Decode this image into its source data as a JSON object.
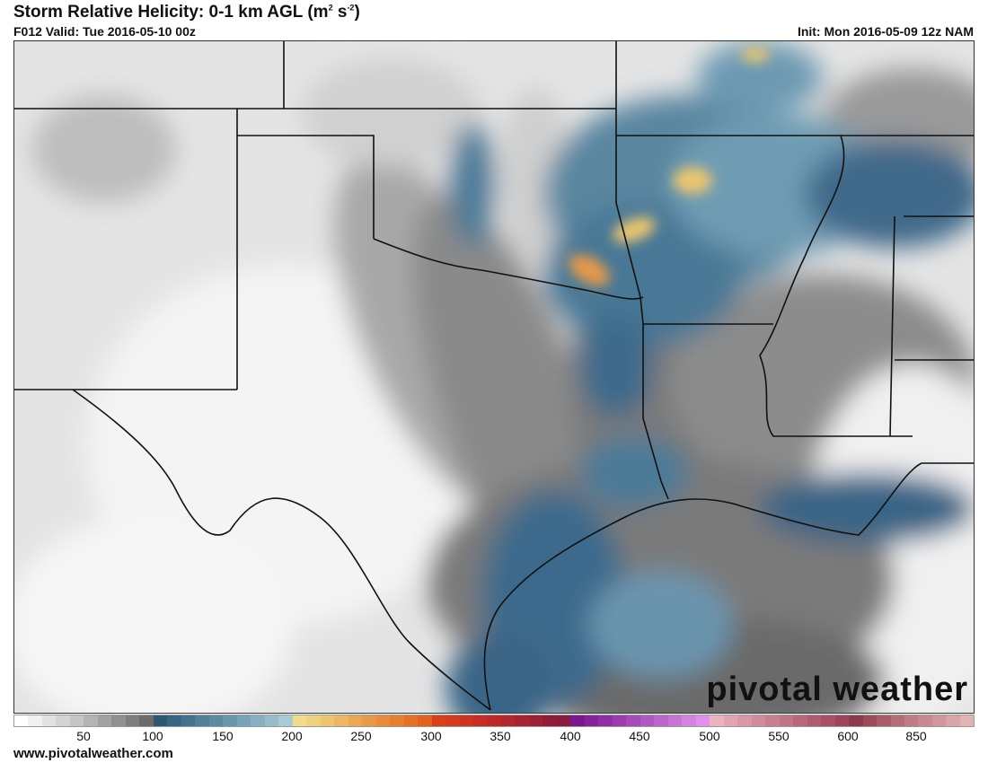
{
  "header": {
    "title": "Storm Relative Helicity: 0-1 km AGL (m",
    "title_sup1": "2",
    "title_mid": " s",
    "title_sup2": "-2",
    "title_end": ")",
    "valid": "F012 Valid: Tue 2016-05-10 00z",
    "init": "Init: Mon 2016-05-09 12z NAM"
  },
  "map": {
    "region": "Southern Plains / Texas / Lower Mississippi Valley",
    "logo": "pivotal weather"
  },
  "colorbar": {
    "tick_labels": [
      "50",
      "100",
      "150",
      "200",
      "250",
      "300",
      "350",
      "400",
      "450",
      "500",
      "550",
      "600",
      "850"
    ],
    "colors": {
      "gray": [
        "#ffffff",
        "#f0f0f0",
        "#e2e2e2",
        "#d4d4d4",
        "#c6c6c6",
        "#b4b4b4",
        "#a2a2a2",
        "#909090",
        "#7e7e7e",
        "#6c6c6c"
      ],
      "blue": [
        "#2e5774",
        "#3a6482",
        "#46708d",
        "#537d98",
        "#5f89a2",
        "#6c96ad",
        "#79a3b8",
        "#88b0c2",
        "#97bdcc",
        "#a8cbd6"
      ],
      "orange": [
        "#f0dc8c",
        "#f0d27e",
        "#eec470",
        "#ecb662",
        "#eaa854",
        "#e89a48",
        "#e88c3c",
        "#e87e30",
        "#e87026",
        "#e4601e"
      ],
      "red": [
        "#d8401a",
        "#d43a1e",
        "#cc3422",
        "#c42e26",
        "#bc282a",
        "#b4262e",
        "#a82232",
        "#9c2036",
        "#901c3a",
        "#8a1a40"
      ],
      "purple": [
        "#7a168e",
        "#86229a",
        "#8e30a4",
        "#9a3cae",
        "#a64ab8",
        "#b058c2",
        "#bc66cc",
        "#c874d6",
        "#d482e0",
        "#e092ea"
      ],
      "pink": [
        "#e8b4c0",
        "#e0a4b2",
        "#d898a6",
        "#d08c9a",
        "#c8808e",
        "#c07484",
        "#b8687a",
        "#b05c70",
        "#a85066",
        "#a0445c"
      ],
      "dark": [
        "#8a3c4c",
        "#9a4c5a",
        "#a85c68",
        "#b66c76",
        "#c07c84",
        "#c88a90",
        "#d0989c",
        "#d8a6a8",
        "#e0b4b4"
      ]
    }
  },
  "footer": {
    "url": "www.pivotalweather.com"
  }
}
